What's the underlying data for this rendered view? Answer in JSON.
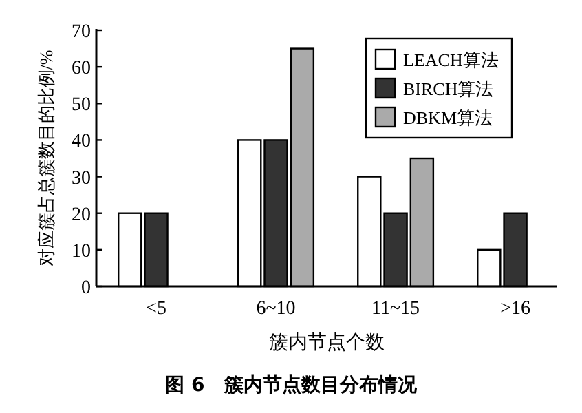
{
  "chart_data": {
    "type": "bar",
    "title": "图 6　簇内节点数目分布情况",
    "xlabel": "簇内节点个数",
    "ylabel": "对应簇占总簇数目的比例/%",
    "categories": [
      "<5",
      "6~10",
      "11~15",
      ">16"
    ],
    "series": [
      {
        "name": "LEACH算法",
        "color": "#ffffff",
        "values": [
          20,
          40,
          30,
          10
        ]
      },
      {
        "name": "BIRCH算法",
        "color": "#333333",
        "values": [
          20,
          40,
          20,
          20
        ]
      },
      {
        "name": "DBKM算法",
        "color": "#aaaaaa",
        "values": [
          null,
          65,
          35,
          null
        ]
      }
    ],
    "ylim": [
      0,
      70
    ],
    "yticks": [
      0,
      10,
      20,
      30,
      40,
      50,
      60,
      70
    ],
    "grid": false,
    "legend": "top right"
  }
}
